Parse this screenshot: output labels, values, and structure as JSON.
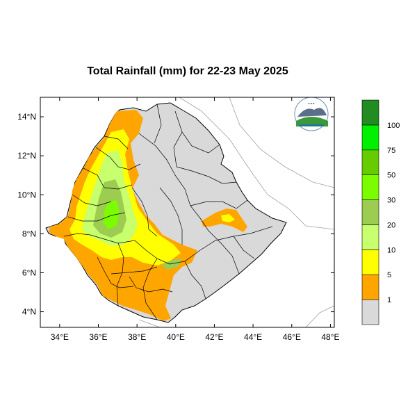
{
  "title": "Total Rainfall (mm) for 22-23 May 2025",
  "map": {
    "x_ticks": [
      "34°E",
      "36°E",
      "38°E",
      "40°E",
      "42°E",
      "44°E",
      "46°E",
      "48°E"
    ],
    "y_ticks": [
      "14°N",
      "12°N",
      "10°N",
      "8°N",
      "6°N",
      "4°N"
    ],
    "lon_range": [
      33,
      48.2
    ],
    "lat_range": [
      3.2,
      15
    ],
    "colors": {
      "land": "#d9d9d9",
      "border": "#000000",
      "neighbor_border": "#a0a0a0",
      "rain_1": "#ffa500",
      "rain_5": "#ffff00",
      "rain_10": "#c8ff6e",
      "rain_20": "#9ccc50",
      "rain_30": "#7cfc00",
      "rain_50": "#66cc00",
      "rain_75": "#00f000",
      "rain_100": "#228b22"
    },
    "logo": "ethiopian-meteorology-institute-logo"
  },
  "legend": {
    "labels": [
      "1",
      "5",
      "10",
      "20",
      "30",
      "50",
      "75",
      "100"
    ],
    "colors": [
      "#d9d9d9",
      "#ffa500",
      "#ffff00",
      "#c8ff6e",
      "#9ccc50",
      "#7cfc00",
      "#66cc00",
      "#00f000",
      "#228b22"
    ]
  }
}
